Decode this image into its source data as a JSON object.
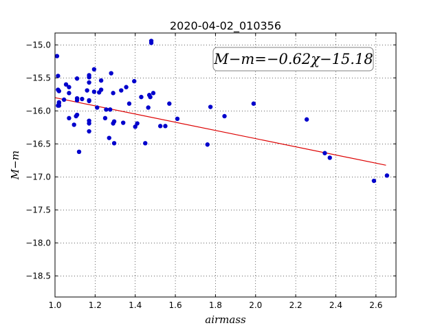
{
  "chart_data": {
    "type": "scatter",
    "title": "2020-04-02_010356",
    "xlabel": "airmass",
    "ylabel": "M−m",
    "xlim": [
      1.0,
      2.7
    ],
    "ylim": [
      -18.82,
      -14.82
    ],
    "y_inverted": true,
    "grid": true,
    "x_ticks": [
      1.0,
      1.2,
      1.4,
      1.6,
      1.8,
      2.0,
      2.2,
      2.4,
      2.6
    ],
    "x_tick_labels": [
      "1.0",
      "1.2",
      "1.4",
      "1.6",
      "1.8",
      "2.0",
      "2.2",
      "2.4",
      "2.6"
    ],
    "y_ticks": [
      -15.0,
      -15.5,
      -16.0,
      -16.5,
      -17.0,
      -17.5,
      -18.0,
      -18.5
    ],
    "y_tick_labels": [
      "−15.0",
      "−15.5",
      "−16.0",
      "−16.5",
      "−17.0",
      "−17.5",
      "−18.0",
      "−18.5"
    ],
    "annotation": "M−m=−0.62χ−15.18",
    "marker_color": "#0000cc",
    "fit_color": "#dd0000",
    "fit": {
      "slope": -0.62,
      "intercept": -15.18,
      "x_range": [
        1.0,
        2.65
      ]
    },
    "points": [
      [
        1.01,
        -15.17
      ],
      [
        1.015,
        -15.47
      ],
      [
        1.015,
        -15.68
      ],
      [
        1.02,
        -15.7
      ],
      [
        1.02,
        -15.88
      ],
      [
        1.02,
        -15.92
      ],
      [
        1.02,
        -15.87
      ],
      [
        1.015,
        -15.92
      ],
      [
        1.045,
        -15.83
      ],
      [
        1.055,
        -15.6
      ],
      [
        1.07,
        -15.64
      ],
      [
        1.07,
        -15.73
      ],
      [
        1.07,
        -16.11
      ],
      [
        1.095,
        -16.21
      ],
      [
        1.105,
        -16.08
      ],
      [
        1.11,
        -15.81
      ],
      [
        1.11,
        -15.84
      ],
      [
        1.11,
        -15.51
      ],
      [
        1.11,
        -16.06
      ],
      [
        1.12,
        -16.62
      ],
      [
        1.135,
        -15.82
      ],
      [
        1.16,
        -15.69
      ],
      [
        1.17,
        -15.46
      ],
      [
        1.17,
        -15.49
      ],
      [
        1.17,
        -15.57
      ],
      [
        1.17,
        -15.84
      ],
      [
        1.17,
        -15.85
      ],
      [
        1.17,
        -16.15
      ],
      [
        1.17,
        -16.19
      ],
      [
        1.17,
        -16.31
      ],
      [
        1.195,
        -15.37
      ],
      [
        1.195,
        -15.71
      ],
      [
        1.21,
        -15.95
      ],
      [
        1.22,
        -15.72
      ],
      [
        1.23,
        -15.54
      ],
      [
        1.23,
        -15.68
      ],
      [
        1.25,
        -16.11
      ],
      [
        1.255,
        -15.98
      ],
      [
        1.27,
        -16.41
      ],
      [
        1.275,
        -15.98
      ],
      [
        1.28,
        -15.43
      ],
      [
        1.29,
        -15.73
      ],
      [
        1.29,
        -16.19
      ],
      [
        1.295,
        -16.16
      ],
      [
        1.295,
        -16.49
      ],
      [
        1.33,
        -15.69
      ],
      [
        1.34,
        -16.18
      ],
      [
        1.355,
        -15.64
      ],
      [
        1.37,
        -15.89
      ],
      [
        1.395,
        -15.55
      ],
      [
        1.4,
        -16.24
      ],
      [
        1.41,
        -16.19
      ],
      [
        1.43,
        -15.79
      ],
      [
        1.45,
        -16.49
      ],
      [
        1.465,
        -15.95
      ],
      [
        1.47,
        -15.76
      ],
      [
        1.475,
        -15.79
      ],
      [
        1.48,
        -14.94
      ],
      [
        1.48,
        -14.97
      ],
      [
        1.49,
        -15.73
      ],
      [
        1.525,
        -16.23
      ],
      [
        1.55,
        -16.23
      ],
      [
        1.57,
        -15.89
      ],
      [
        1.61,
        -16.12
      ],
      [
        1.76,
        -16.51
      ],
      [
        1.775,
        -15.94
      ],
      [
        1.845,
        -16.08
      ],
      [
        1.99,
        -15.89
      ],
      [
        2.255,
        -16.13
      ],
      [
        2.345,
        -16.64
      ],
      [
        2.37,
        -16.71
      ],
      [
        2.59,
        -17.06
      ],
      [
        2.655,
        -16.98
      ]
    ]
  }
}
